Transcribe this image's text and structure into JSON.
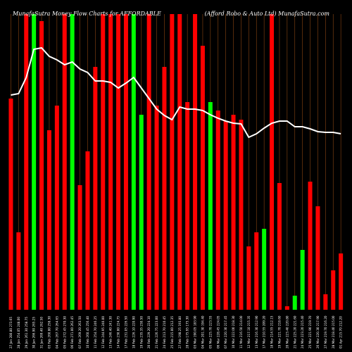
{
  "chart_data": {
    "type": "bar",
    "title": "MunafaSutra Money Flow Charts for AFFORDABLE",
    "company": "(Afford Robo & Auto Ltd) MunafaSutra.com",
    "colors": {
      "background": "#000000",
      "up_bar": "#00ff00",
      "down_bar": "#ff0000",
      "line": "#ffffff",
      "gridline": "#8b4513",
      "text": "#ffffff"
    },
    "categories": [
      "27 Jan 280.80 273.65",
      "28 Jan 254.05 248.00",
      "29 Jan 261.30 258.75",
      "30 Jan 266.90 265.25",
      "31 Jan 269.40 262.50",
      "03 Feb 260.80 258.30",
      "04 Feb 267.70 264.65",
      "05 Feb 272.45 270.30",
      "06 Feb 271.00 262.45",
      "07 Feb 269.20 263.50",
      "10 Feb 260.45 256.40",
      "11 Feb 254.70 246.25",
      "12 Feb 244.95 240.00",
      "13 Feb 246.40 241.30",
      "14 Feb 230.80 224.75",
      "17 Feb 231.05 226.50",
      "18 Feb 226.10 220.90",
      "19 Feb 235.35 230.50",
      "20 Feb 229.20 224.10",
      "21 Feb 226.75 223.00",
      "24 Feb 213.70 210.45",
      "25 Feb 215.00 212.35",
      "27 Feb 198.25 193.80",
      "28 Feb 175.95 175.30",
      "03 Mar 190.05 183.90",
      "04 Mar 201.30 194.40",
      "05 Mar 225.70 223.55",
      "06 Mar 228.45 224.05",
      "07 Mar 220.30 217.45",
      "10 Mar 222.00 218.30",
      "11 Mar 216.50 214.00",
      "12 Mar 217.10 215.35",
      "13 Mar 216.30 212.90",
      "17 Mar 210.55 209.20",
      "18 Mar 214.55 212.15",
      "19 Mar 221.70 218.60",
      "20 Mar 223.40 220.80",
      "21 Mar 225.20 221.60",
      "24 Mar 223.20 215.40",
      "25 Mar 221.90 219.70",
      "26 Mar 220.30 217.90",
      "27 Mar 219.70 216.20",
      "28 Mar 218.40 215.00",
      "01 Apr 215.70 212.20"
    ],
    "values": [
      300,
      110,
      420,
      420,
      410,
      255,
      290,
      420,
      420,
      177,
      225,
      345,
      420,
      420,
      420,
      420,
      420,
      277,
      420,
      290,
      345,
      420,
      420,
      295,
      420,
      375,
      295,
      283,
      268,
      277,
      270,
      90,
      110,
      115,
      420,
      180,
      5,
      20,
      85,
      182,
      147,
      22,
      56,
      80
    ],
    "direction": [
      "down",
      "down",
      "down",
      "up",
      "down",
      "down",
      "down",
      "down",
      "up",
      "down",
      "down",
      "down",
      "down",
      "down",
      "down",
      "down",
      "up",
      "up",
      "down",
      "down",
      "down",
      "down",
      "down",
      "down",
      "down",
      "down",
      "up",
      "down",
      "down",
      "down",
      "down",
      "down",
      "down",
      "up",
      "down",
      "down",
      "down",
      "up",
      "up",
      "down",
      "down",
      "down",
      "down",
      "down"
    ],
    "line": [
      305,
      307,
      330,
      370,
      372,
      360,
      355,
      348,
      352,
      342,
      337,
      325,
      325,
      323,
      315,
      322,
      330,
      315,
      300,
      285,
      276,
      270,
      288,
      285,
      285,
      283,
      277,
      272,
      268,
      265,
      264,
      245,
      250,
      258,
      265,
      268,
      268,
      260,
      260,
      257,
      253,
      252,
      252,
      250
    ],
    "ylim": [
      0,
      420
    ]
  }
}
